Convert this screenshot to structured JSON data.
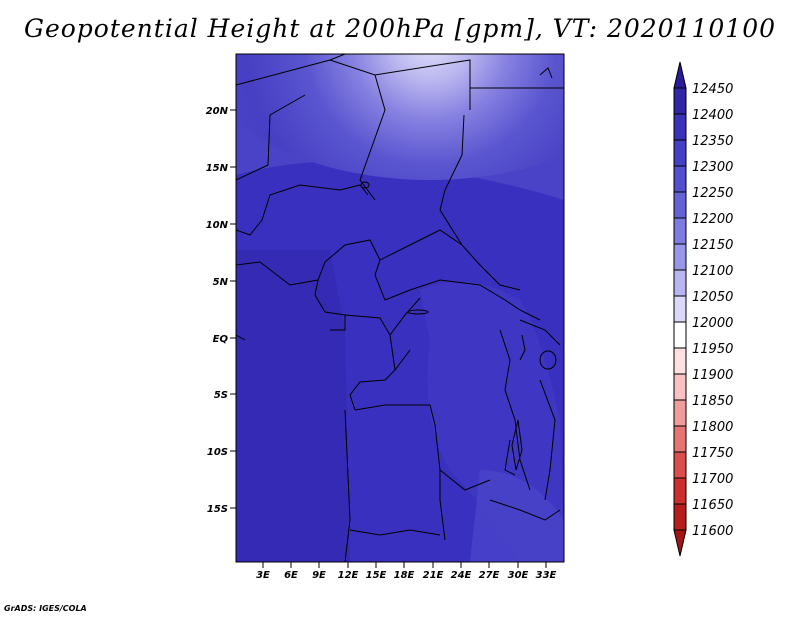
{
  "title": "Geopotential Height at 200hPa [gpm], VT: 2020110100",
  "footer": "GrADS: IGES/COLA",
  "map": {
    "region": "Central Africa",
    "lon_range": [
      0,
      36
    ],
    "lat_range": [
      -20,
      24
    ],
    "fill_color_dominant": "#3a30bf",
    "lat_ticks": [
      "20N",
      "15N",
      "10N",
      "5N",
      "EQ",
      "5S",
      "10S",
      "15S"
    ],
    "lon_ticks": [
      "3E",
      "6E",
      "9E",
      "12E",
      "15E",
      "18E",
      "21E",
      "24E",
      "27E",
      "30E",
      "33E"
    ]
  },
  "colorbar": {
    "levels": [
      "12450",
      "12400",
      "12350",
      "12300",
      "12250",
      "12200",
      "12150",
      "12100",
      "12050",
      "12000",
      "11950",
      "11900",
      "11850",
      "11800",
      "11750",
      "11700",
      "11650",
      "11600"
    ],
    "colors": [
      "#2b1a9a",
      "#3226a8",
      "#3a33b8",
      "#4440c4",
      "#5250cf",
      "#6562d8",
      "#7d7ae0",
      "#9896e8",
      "#b7b6f0",
      "#d9d8f8",
      "#ffffff",
      "#fde1e1",
      "#f9c1c1",
      "#f19c9c",
      "#e77474",
      "#dc4e4e",
      "#cc2f2f",
      "#b71d1d",
      "#a31515"
    ]
  }
}
